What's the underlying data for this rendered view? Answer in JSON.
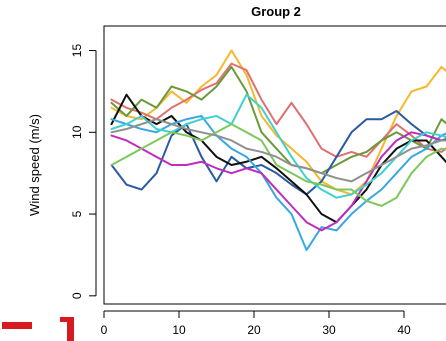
{
  "chart_data": {
    "type": "line",
    "title": "Group 2",
    "xlabel": "",
    "ylabel": "Wind speed (m/s)",
    "xlim": [
      0,
      48
    ],
    "ylim": [
      -0.5,
      16.5
    ],
    "xticks": [
      0,
      10,
      20,
      30,
      40
    ],
    "yticks": [
      0,
      5,
      10,
      15
    ],
    "grid": false,
    "legend": "none",
    "x": [
      1,
      3,
      5,
      7,
      9,
      11,
      13,
      15,
      17,
      19,
      21,
      23,
      25,
      27,
      29,
      31,
      33,
      35,
      37,
      39,
      41,
      43,
      45,
      47,
      48
    ],
    "series": [
      {
        "color": "#f5b82e",
        "values": [
          11.5,
          11.0,
          10.8,
          11.5,
          12.5,
          11.8,
          12.8,
          13.5,
          15.0,
          13.5,
          11.0,
          9.8,
          9.0,
          8.2,
          7.0,
          6.5,
          6.2,
          7.0,
          9.0,
          11.0,
          12.5,
          12.8,
          14.0,
          13.2,
          12.3
        ]
      },
      {
        "color": "#e07070",
        "values": [
          12.0,
          11.5,
          11.2,
          10.8,
          11.5,
          12.0,
          12.6,
          13.0,
          14.2,
          13.8,
          12.0,
          10.5,
          11.8,
          10.5,
          9.0,
          8.5,
          8.8,
          8.5,
          9.5,
          10.5,
          9.8,
          9.0,
          8.8,
          9.5,
          9.0
        ]
      },
      {
        "color": "#6a9a3a",
        "values": [
          11.8,
          11.0,
          12.0,
          11.5,
          12.8,
          12.5,
          12.0,
          12.8,
          14.0,
          12.5,
          10.0,
          9.0,
          8.0,
          7.8,
          7.5,
          8.0,
          8.5,
          8.8,
          9.5,
          10.0,
          9.5,
          9.0,
          10.8,
          10.0,
          8.5
        ]
      },
      {
        "color": "#2c5aa0",
        "values": [
          8.0,
          6.8,
          6.5,
          7.5,
          9.8,
          10.5,
          8.5,
          7.0,
          8.5,
          7.8,
          8.0,
          7.5,
          6.8,
          6.2,
          7.0,
          8.5,
          10.0,
          10.8,
          10.8,
          11.3,
          10.5,
          9.8,
          9.5,
          9.8,
          10.2
        ]
      },
      {
        "color": "#111111",
        "values": [
          10.5,
          12.3,
          11.0,
          10.5,
          11.0,
          10.0,
          9.5,
          8.5,
          8.0,
          8.2,
          8.5,
          7.8,
          7.0,
          6.2,
          5.0,
          4.5,
          5.5,
          6.5,
          8.0,
          9.0,
          9.5,
          9.5,
          8.5,
          7.5,
          7.2
        ]
      },
      {
        "color": "#3aa8e0",
        "values": [
          10.8,
          10.5,
          10.2,
          10.0,
          10.5,
          10.8,
          11.0,
          9.8,
          9.0,
          8.5,
          7.5,
          6.0,
          5.0,
          2.8,
          4.2,
          4.0,
          5.0,
          5.8,
          6.5,
          7.5,
          8.5,
          9.0,
          9.8,
          10.2,
          10.5
        ]
      },
      {
        "color": "#c02cc0",
        "values": [
          9.8,
          9.5,
          9.0,
          8.5,
          8.0,
          8.0,
          8.2,
          7.8,
          7.5,
          7.8,
          7.5,
          6.5,
          5.5,
          4.5,
          4.0,
          4.5,
          5.5,
          7.0,
          8.5,
          9.5,
          10.0,
          9.8,
          9.5,
          9.5,
          9.8
        ]
      },
      {
        "color": "#40d0d0",
        "values": [
          10.2,
          10.5,
          11.0,
          10.2,
          10.0,
          10.5,
          10.8,
          11.0,
          10.5,
          12.3,
          11.5,
          10.0,
          8.5,
          7.2,
          6.5,
          6.0,
          6.2,
          6.8,
          7.5,
          8.5,
          9.5,
          10.0,
          9.8,
          9.5,
          9.2
        ]
      },
      {
        "color": "#7cc85a",
        "values": [
          8.0,
          8.5,
          9.0,
          9.5,
          10.0,
          9.8,
          9.5,
          10.0,
          10.5,
          10.0,
          9.5,
          8.0,
          7.5,
          7.0,
          6.8,
          6.5,
          6.5,
          5.8,
          5.5,
          6.0,
          7.5,
          8.5,
          9.0,
          8.8,
          8.7
        ]
      },
      {
        "color": "#909090",
        "values": [
          10.0,
          10.2,
          10.5,
          10.8,
          10.5,
          10.2,
          10.0,
          9.8,
          9.5,
          9.0,
          8.8,
          8.5,
          8.0,
          7.8,
          7.5,
          7.2,
          7.0,
          7.5,
          8.0,
          8.5,
          9.0,
          9.2,
          9.5,
          9.5,
          9.3
        ]
      }
    ]
  }
}
